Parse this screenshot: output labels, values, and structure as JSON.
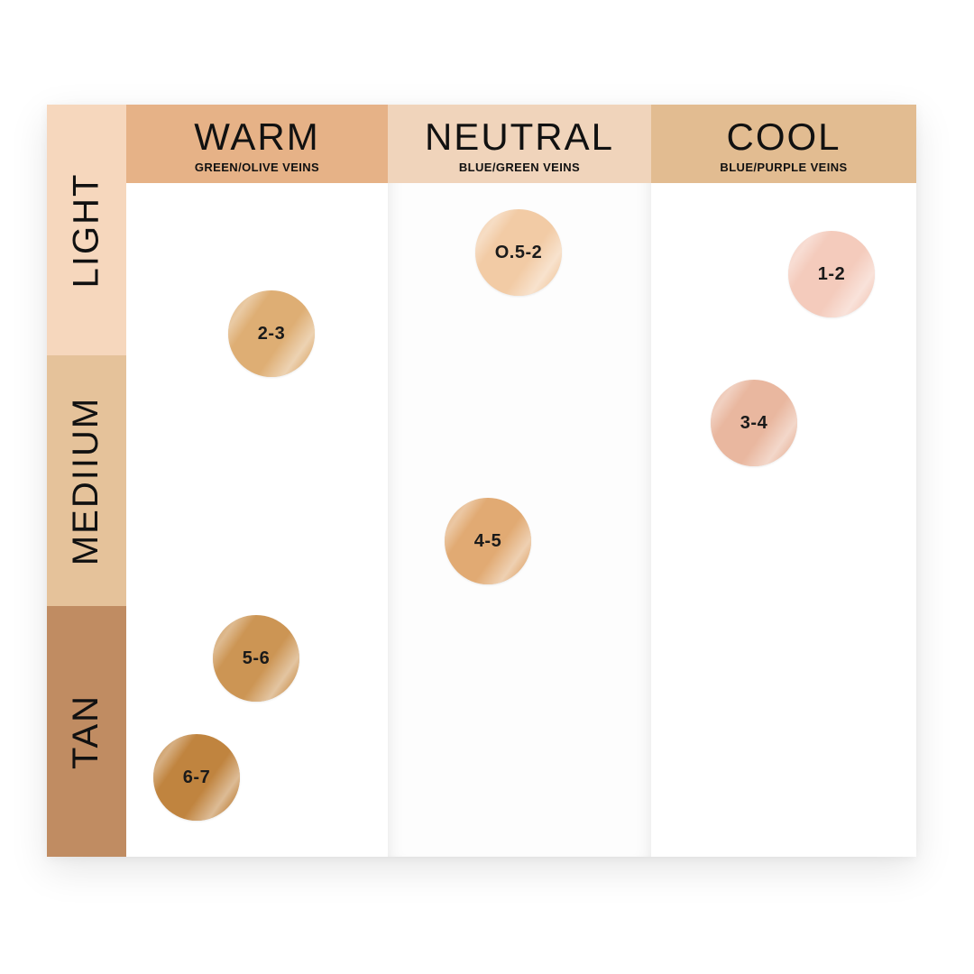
{
  "rows": [
    {
      "label": "LIGHT",
      "color": "#f6d7bd"
    },
    {
      "label": "MEDIIUM",
      "color": "#e5c29a"
    },
    {
      "label": "TAN",
      "color": "#c08c62"
    }
  ],
  "columns": [
    {
      "title": "WARM",
      "subtitle": "GREEN/OLIVE VEINS",
      "header_color": "#e6b287"
    },
    {
      "title": "NEUTRAL",
      "subtitle": "BLUE/GREEN VEINS",
      "header_color": "#f0d4bb"
    },
    {
      "title": "COOL",
      "subtitle": "BLUE/PURPLE VEINS",
      "header_color": "#e2bc91"
    }
  ],
  "swatches": [
    {
      "label": "2-3",
      "column": "WARM",
      "row": "LIGHT",
      "color": "#deae74"
    },
    {
      "label": "5-6",
      "column": "WARM",
      "row": "TAN",
      "color": "#cc9554"
    },
    {
      "label": "6-7",
      "column": "WARM",
      "row": "TAN",
      "color": "#c0843f"
    },
    {
      "label": "O.5-2",
      "column": "NEUTRAL",
      "row": "LIGHT",
      "color": "#f2cba5"
    },
    {
      "label": "4-5",
      "column": "NEUTRAL",
      "row": "MEDIIUM",
      "color": "#e1aa73"
    },
    {
      "label": "1-2",
      "column": "COOL",
      "row": "LIGHT",
      "color": "#f4cbbc"
    },
    {
      "label": "3-4",
      "column": "COOL",
      "row": "MEDIIUM",
      "color": "#e9b79f"
    }
  ]
}
